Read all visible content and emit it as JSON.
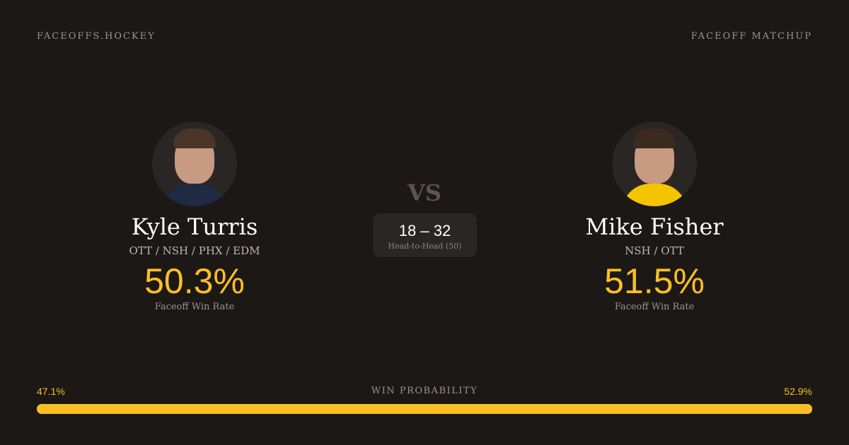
{
  "header": {
    "brand": "FACEOFFS.HOCKEY",
    "tag": "FACEOFF MATCHUP"
  },
  "players": [
    {
      "name": "Kyle Turris",
      "teams": "OTT / NSH / PHX / EDM",
      "win_rate": "50.3%",
      "win_rate_label": "Faceoff Win Rate",
      "jersey_color": "#1f2a44"
    },
    {
      "name": "Mike Fisher",
      "teams": "NSH / OTT",
      "win_rate": "51.5%",
      "win_rate_label": "Faceoff Win Rate",
      "jersey_color": "#f5c400"
    }
  ],
  "versus": "VS",
  "head_to_head": {
    "score": "18 – 32",
    "label": "Head-to-Head (50)"
  },
  "probability": {
    "label": "WIN PROBABILITY",
    "left": "47.1%",
    "right": "52.9%",
    "left_value": 47.1,
    "right_value": 52.9,
    "color": "#fbbf24"
  }
}
